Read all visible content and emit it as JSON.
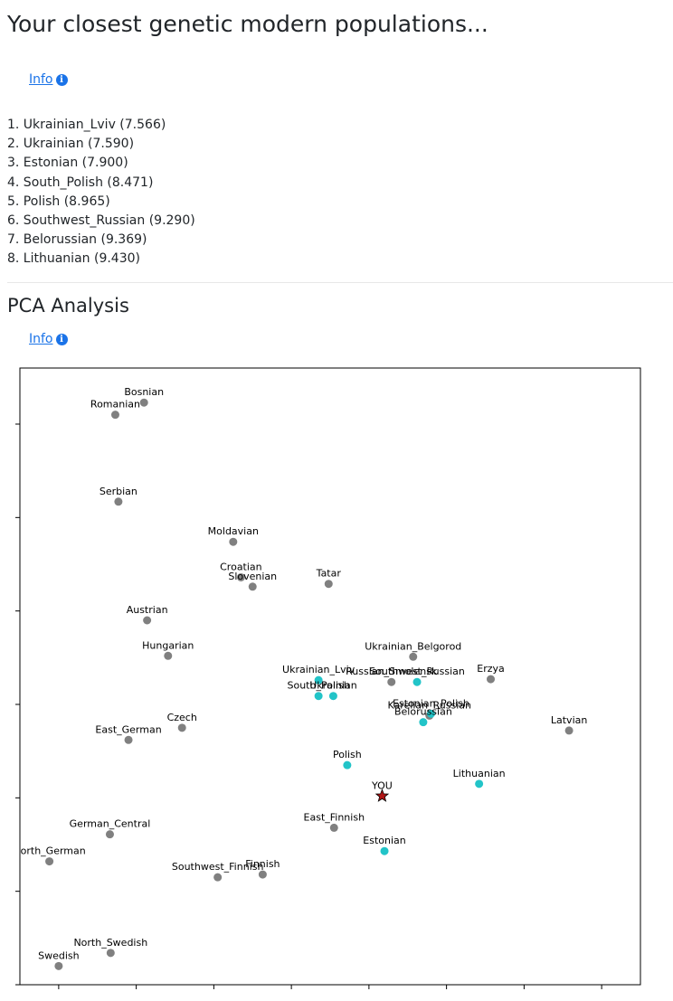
{
  "header": {
    "title": "Your closest genetic modern populations..."
  },
  "info_link": {
    "label": "Info",
    "icon": "info-circle-icon"
  },
  "closest_populations": [
    "1. Ukrainian_Lviv (7.566)",
    "2. Ukrainian (7.590)",
    "3. Estonian (7.900)",
    "4. South_Polish (8.471)",
    "5. Polish (8.965)",
    "6. Southwest_Russian (9.290)",
    "7. Belorussian (9.369)",
    "8. Lithuanian (9.430)"
  ],
  "pca_section": {
    "title": "PCA Analysis",
    "info_label": "Info"
  },
  "chart_data": {
    "type": "scatter",
    "title": "",
    "xlabel": "",
    "ylabel": "",
    "xlim": [
      -4.5,
      3.5
    ],
    "ylim": [
      -3.0,
      3.6
    ],
    "grid": false,
    "colors": {
      "reference": "#808080",
      "closest": "#22c4c8",
      "you": "#b01515"
    },
    "points": [
      {
        "label": "Bosnian",
        "x": -2.9,
        "y": 3.23,
        "group": "reference"
      },
      {
        "label": "Romanian",
        "x": -3.27,
        "y": 3.1,
        "group": "reference"
      },
      {
        "label": "Serbian",
        "x": -3.23,
        "y": 2.17,
        "group": "reference"
      },
      {
        "label": "Moldavian",
        "x": -1.75,
        "y": 1.74,
        "group": "reference"
      },
      {
        "label": "Croatian",
        "x": -1.65,
        "y": 1.36,
        "group": "reference"
      },
      {
        "label": "Slovenian",
        "x": -1.5,
        "y": 1.26,
        "group": "reference"
      },
      {
        "label": "Tatar",
        "x": -0.52,
        "y": 1.29,
        "group": "reference"
      },
      {
        "label": "Austrian",
        "x": -2.86,
        "y": 0.9,
        "group": "reference"
      },
      {
        "label": "Hungarian",
        "x": -2.59,
        "y": 0.52,
        "group": "reference"
      },
      {
        "label": "Ukrainian_Belgorod",
        "x": 0.57,
        "y": 0.51,
        "group": "reference"
      },
      {
        "label": "Russian_Smolensk",
        "x": 0.29,
        "y": 0.24,
        "group": "reference"
      },
      {
        "label": "Erzya",
        "x": 1.57,
        "y": 0.27,
        "group": "reference"
      },
      {
        "label": "Karelian_Russian",
        "x": 0.78,
        "y": -0.12,
        "group": "reference"
      },
      {
        "label": "Czech",
        "x": -2.41,
        "y": -0.25,
        "group": "reference"
      },
      {
        "label": "East_German",
        "x": -3.1,
        "y": -0.38,
        "group": "reference"
      },
      {
        "label": "Latvian",
        "x": 2.58,
        "y": -0.28,
        "group": "reference"
      },
      {
        "label": "East_Finnish",
        "x": -0.45,
        "y": -1.32,
        "group": "reference"
      },
      {
        "label": "German_Central",
        "x": -3.34,
        "y": -1.39,
        "group": "reference"
      },
      {
        "label": "North_German",
        "x": -4.12,
        "y": -1.68,
        "group": "reference"
      },
      {
        "label": "Southwest_Finnish",
        "x": -1.95,
        "y": -1.85,
        "group": "reference"
      },
      {
        "label": "Finnish",
        "x": -1.37,
        "y": -1.82,
        "group": "reference"
      },
      {
        "label": "North_Swedish",
        "x": -3.33,
        "y": -2.66,
        "group": "reference"
      },
      {
        "label": "Swedish",
        "x": -4.0,
        "y": -2.8,
        "group": "reference"
      },
      {
        "label": "Ukrainian_Lviv",
        "x": -0.65,
        "y": 0.26,
        "group": "closest"
      },
      {
        "label": "South_Polish",
        "x": -0.65,
        "y": 0.09,
        "group": "closest"
      },
      {
        "label": "Ukrainian",
        "x": -0.46,
        "y": 0.09,
        "group": "closest"
      },
      {
        "label": "Southwest_Russian",
        "x": 0.62,
        "y": 0.24,
        "group": "closest"
      },
      {
        "label": "Estonian_Polish",
        "x": 0.8,
        "y": -0.1,
        "group": "closest"
      },
      {
        "label": "Belorussian",
        "x": 0.7,
        "y": -0.19,
        "group": "closest"
      },
      {
        "label": "Polish",
        "x": -0.28,
        "y": -0.65,
        "group": "closest"
      },
      {
        "label": "Lithuanian",
        "x": 1.42,
        "y": -0.85,
        "group": "closest"
      },
      {
        "label": "Estonian",
        "x": 0.2,
        "y": -1.57,
        "group": "closest"
      },
      {
        "label": "YOU",
        "x": 0.17,
        "y": -0.98,
        "group": "you"
      }
    ]
  }
}
